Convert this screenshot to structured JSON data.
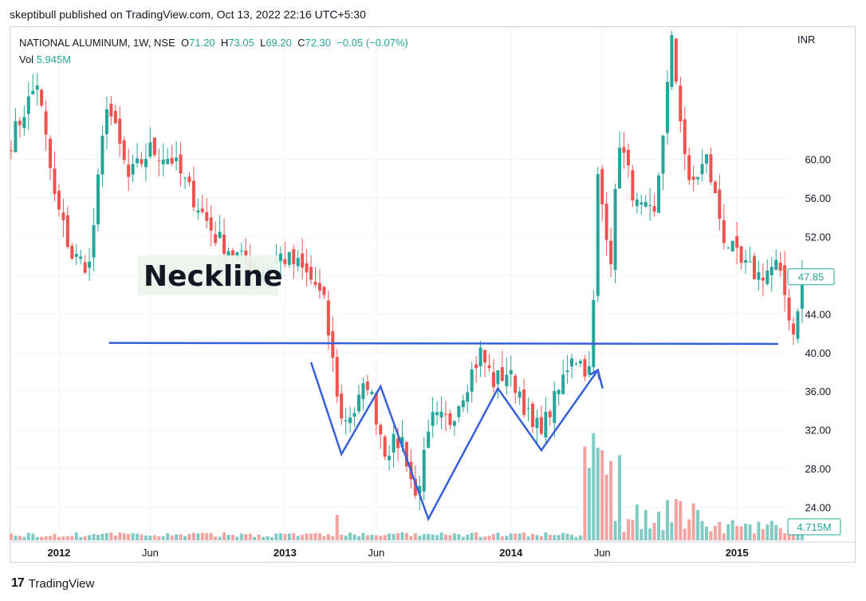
{
  "header": {
    "published": "skeptibull published on TradingView.com, Oct 13, 2022 22:16 UTC+5:30"
  },
  "legend": {
    "symbol": "NATIONAL ALUMINUM, 1W, NSE",
    "open_label": "O",
    "open": "71.20",
    "high_label": "H",
    "high": "73.05",
    "low_label": "L",
    "low": "69.20",
    "close_label": "C",
    "close": "72.30",
    "change": "−0.05 (−0.07%)",
    "vol_label": "Vol",
    "vol": "5.945M"
  },
  "footer": {
    "brand": "TradingView"
  },
  "colors": {
    "up": "#26a69a",
    "down": "#ef5350",
    "up_vol": "#80cbc4",
    "down_vol": "#f4a3a3",
    "pattern": "#3560d9"
  },
  "chart_data": {
    "type": "candlestick",
    "currency": "INR",
    "ylim": [
      20.5,
      73.5
    ],
    "y_ticks": [
      "60.00",
      "56.00",
      "52.00",
      "48.00",
      "44.00",
      "40.00",
      "36.00",
      "32.00",
      "28.00",
      "24.00"
    ],
    "x_ticks": [
      {
        "label": "2012",
        "bold": true,
        "week": 11
      },
      {
        "label": "Jun",
        "bold": false,
        "week": 32
      },
      {
        "label": "2013",
        "bold": true,
        "week": 63
      },
      {
        "label": "Jun",
        "bold": false,
        "week": 84
      },
      {
        "label": "2014",
        "bold": true,
        "week": 115
      },
      {
        "label": "Jun",
        "bold": false,
        "week": 136
      },
      {
        "label": "2015",
        "bold": true,
        "week": 167
      }
    ],
    "last_price": "47.85",
    "last_volume": "4.715M",
    "close_path": [
      [
        0,
        62
      ],
      [
        6,
        68
      ],
      [
        10,
        56
      ],
      [
        14,
        50
      ],
      [
        18,
        49
      ],
      [
        22,
        66
      ],
      [
        27,
        58
      ],
      [
        32,
        61
      ],
      [
        37,
        60
      ],
      [
        42,
        56
      ],
      [
        47,
        52
      ],
      [
        52,
        50
      ],
      [
        57,
        48
      ],
      [
        62,
        50
      ],
      [
        66,
        49
      ],
      [
        70,
        47
      ],
      [
        72,
        45
      ],
      [
        76,
        33
      ],
      [
        79,
        34
      ],
      [
        82,
        37
      ],
      [
        86,
        30
      ],
      [
        90,
        31
      ],
      [
        93,
        25
      ],
      [
        97,
        33
      ],
      [
        101,
        33
      ],
      [
        105,
        37
      ],
      [
        108,
        40
      ],
      [
        111,
        37
      ],
      [
        114,
        38
      ],
      [
        117,
        36
      ],
      [
        120,
        32
      ],
      [
        123,
        33
      ],
      [
        126,
        36
      ],
      [
        129,
        40
      ],
      [
        133,
        38
      ],
      [
        134,
        45
      ],
      [
        135,
        58
      ],
      [
        138,
        50
      ],
      [
        140,
        62
      ],
      [
        144,
        55
      ],
      [
        148,
        54
      ],
      [
        152,
        72
      ],
      [
        156,
        57
      ],
      [
        160,
        60
      ],
      [
        164,
        52
      ],
      [
        168,
        49
      ],
      [
        172,
        48
      ],
      [
        176,
        49
      ],
      [
        178,
        46
      ],
      [
        180,
        42
      ],
      [
        182,
        48
      ]
    ],
    "annotations": {
      "neckline": {
        "label": "Neckline",
        "x_start": 22.5,
        "x_end": 176.5,
        "y_start": 41.0,
        "y_end": 40.9
      },
      "pattern_path": [
        [
          69,
          39.0
        ],
        [
          76,
          29.5
        ],
        [
          85,
          36.5
        ],
        [
          96,
          22.8
        ],
        [
          112,
          36.3
        ],
        [
          122,
          29.9
        ],
        [
          135,
          38.2
        ]
      ],
      "arrow_tip": [
        135,
        36.8
      ]
    }
  }
}
